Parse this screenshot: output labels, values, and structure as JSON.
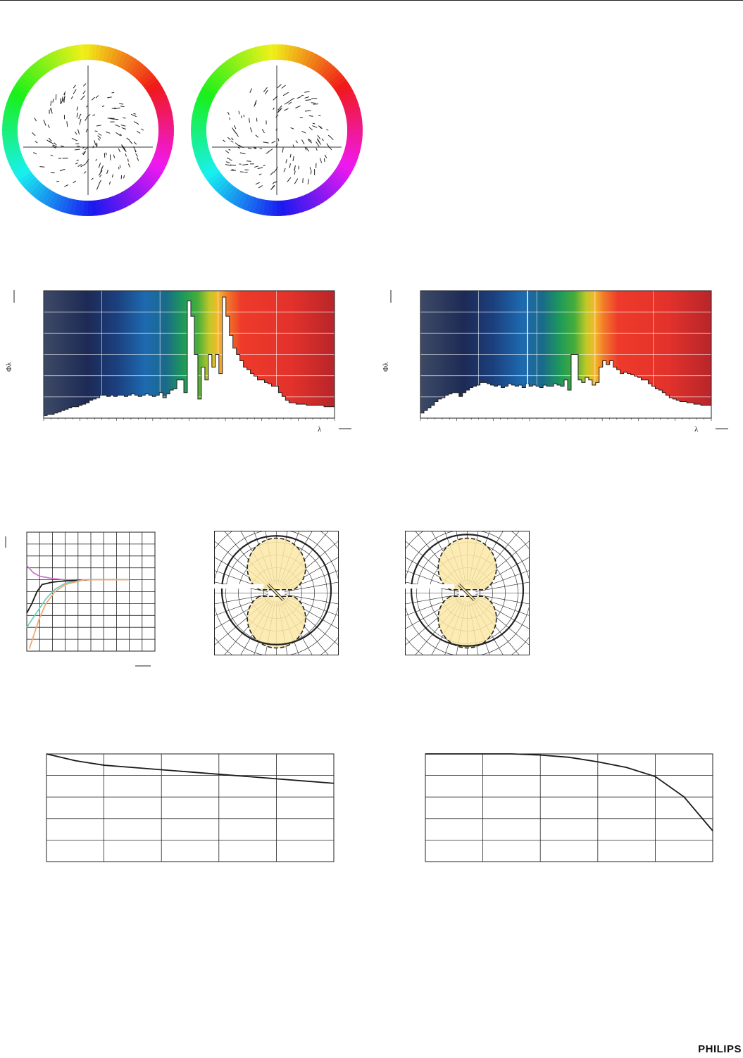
{
  "brand": {
    "logo_text": "PHILIPS"
  },
  "spectral_charts": [
    {
      "y_symbol": "Φλ",
      "x_symbol": "λ",
      "profile": [
        2,
        3,
        3,
        4,
        5,
        6,
        7,
        8,
        9,
        9,
        10,
        11,
        12,
        14,
        15,
        16,
        18,
        18,
        17,
        18,
        17,
        18,
        18,
        17,
        18,
        19,
        18,
        17,
        18,
        19,
        18,
        17,
        18,
        20,
        16,
        19,
        22,
        23,
        30,
        30,
        20,
        92,
        80,
        50,
        15,
        40,
        30,
        50,
        40,
        50,
        35,
        95,
        80,
        65,
        55,
        50,
        45,
        40,
        38,
        35,
        33,
        30,
        30,
        28,
        27,
        25,
        25,
        20,
        17,
        14,
        12,
        12,
        11,
        11,
        11,
        10,
        10,
        10,
        10,
        10,
        9,
        9,
        9
      ]
    },
    {
      "y_symbol": "Φλ",
      "x_symbol": "λ",
      "profile": [
        4,
        6,
        8,
        10,
        13,
        15,
        16,
        18,
        19,
        20,
        20,
        17,
        20,
        22,
        24,
        25,
        26,
        28,
        28,
        27,
        26,
        25,
        26,
        24,
        25,
        27,
        26,
        25,
        26,
        24,
        27,
        25,
        26,
        25,
        24,
        26,
        25,
        25,
        27,
        26,
        25,
        30,
        22,
        50,
        50,
        30,
        28,
        32,
        30,
        26,
        28,
        40,
        45,
        42,
        45,
        40,
        38,
        35,
        36,
        35,
        34,
        33,
        32,
        30,
        30,
        27,
        25,
        23,
        22,
        20,
        18,
        16,
        15,
        14,
        13,
        13,
        12,
        12,
        11,
        11,
        10,
        10,
        10
      ]
    }
  ],
  "curve_charts": [
    {
      "line_color": "#1a1a1a",
      "profile": [
        1.0,
        0.94,
        0.9,
        0.88,
        0.86,
        0.84,
        0.82,
        0.8,
        0.78,
        0.76,
        0.74
      ]
    },
    {
      "line_color": "#1a1a1a",
      "profile": [
        1.0,
        1.0,
        1.0,
        1.0,
        0.99,
        0.97,
        0.93,
        0.88,
        0.8,
        0.62,
        0.32
      ]
    }
  ],
  "warmup_chart": {
    "series": [
      {
        "color": "#c879c8",
        "points": [
          [
            0,
            0.72
          ],
          [
            0.05,
            0.66
          ],
          [
            0.1,
            0.63
          ],
          [
            0.2,
            0.61
          ],
          [
            0.3,
            0.6
          ],
          [
            0.5,
            0.6
          ],
          [
            0.8,
            0.6
          ]
        ]
      },
      {
        "color": "#1a1a1a",
        "points": [
          [
            0,
            0.32
          ],
          [
            0.04,
            0.4
          ],
          [
            0.08,
            0.5
          ],
          [
            0.12,
            0.56
          ],
          [
            0.2,
            0.58
          ],
          [
            0.3,
            0.59
          ],
          [
            0.5,
            0.6
          ],
          [
            0.8,
            0.6
          ]
        ]
      },
      {
        "color": "#6fcfc0",
        "points": [
          [
            0,
            0.2
          ],
          [
            0.05,
            0.28
          ],
          [
            0.1,
            0.36
          ],
          [
            0.15,
            0.44
          ],
          [
            0.22,
            0.52
          ],
          [
            0.3,
            0.57
          ],
          [
            0.45,
            0.6
          ],
          [
            0.8,
            0.6
          ]
        ]
      },
      {
        "color": "#f0a878",
        "points": [
          [
            0.02,
            0.02
          ],
          [
            0.06,
            0.15
          ],
          [
            0.1,
            0.28
          ],
          [
            0.15,
            0.4
          ],
          [
            0.22,
            0.5
          ],
          [
            0.3,
            0.56
          ],
          [
            0.45,
            0.6
          ],
          [
            0.8,
            0.6
          ]
        ]
      }
    ]
  }
}
